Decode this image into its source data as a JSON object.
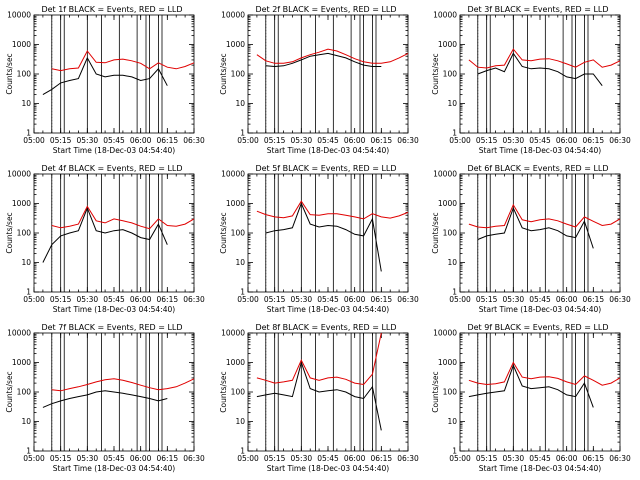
{
  "figure": {
    "xlabel": "Start Time (18-Dec-03 04:54:40)",
    "ylabel": "Counts/sec",
    "x_tick_labels": [
      "05:00",
      "05:15",
      "05:30",
      "05:45",
      "06:00",
      "06:15",
      "06:30"
    ],
    "y_tick_labels": [
      "1",
      "10",
      "100",
      "1000",
      "10000"
    ],
    "colors": {
      "events": "#000000",
      "lld": "#e00000",
      "axes": "#000000",
      "background": "#ffffff"
    }
  },
  "chart_data": [
    {
      "type": "line",
      "title": "Det 1f BLACK = Events, RED = LLD",
      "xlabel": "Start Time (18-Dec-03 04:54:40)",
      "ylabel": "Counts/sec",
      "xlim": [
        "05:00",
        "06:30"
      ],
      "ylim": [
        1,
        10000
      ],
      "yscale": "log",
      "x": [
        "05:05",
        "05:10",
        "05:15",
        "05:20",
        "05:25",
        "05:30",
        "05:35",
        "05:40",
        "05:45",
        "05:50",
        "05:55",
        "06:00",
        "06:05",
        "06:10",
        "06:15",
        "06:20",
        "06:25",
        "06:30"
      ],
      "series": [
        {
          "name": "Events",
          "values": [
            20,
            30,
            50,
            60,
            70,
            350,
            100,
            80,
            90,
            90,
            80,
            60,
            70,
            150,
            40,
            null,
            null,
            null
          ]
        },
        {
          "name": "LLD",
          "values": [
            null,
            150,
            130,
            150,
            160,
            600,
            250,
            240,
            300,
            320,
            280,
            230,
            150,
            240,
            170,
            150,
            180,
            240
          ]
        }
      ],
      "vertical_lines": [
        "05:10",
        "05:15",
        "05:17",
        "05:30",
        "05:38",
        "05:48",
        "05:58",
        "06:03",
        "06:05",
        "06:10",
        "06:12"
      ]
    },
    {
      "type": "line",
      "title": "Det 2f BLACK = Events, RED = LLD",
      "xlabel": "Start Time (18-Dec-03 04:54:40)",
      "ylabel": "Counts/sec",
      "xlim": [
        "05:00",
        "06:30"
      ],
      "ylim": [
        1,
        10000
      ],
      "yscale": "log",
      "x": [
        "05:05",
        "05:10",
        "05:15",
        "05:20",
        "05:25",
        "05:30",
        "05:35",
        "05:40",
        "05:45",
        "05:50",
        "05:55",
        "06:00",
        "06:05",
        "06:10",
        "06:15",
        "06:20",
        "06:25",
        "06:30"
      ],
      "series": [
        {
          "name": "Events",
          "values": [
            null,
            190,
            180,
            190,
            230,
            300,
            400,
            450,
            500,
            420,
            350,
            260,
            200,
            180,
            180,
            null,
            null,
            null
          ]
        },
        {
          "name": "LLD",
          "values": [
            450,
            280,
            230,
            230,
            260,
            350,
            450,
            550,
            700,
            600,
            450,
            330,
            260,
            230,
            230,
            260,
            350,
            500
          ]
        }
      ],
      "vertical_lines": [
        "05:10",
        "05:15",
        "05:17",
        "05:30",
        "05:38",
        "05:48",
        "05:58",
        "06:03",
        "06:05",
        "06:10",
        "06:12"
      ]
    },
    {
      "type": "line",
      "title": "Det 3f BLACK = Events, RED = LLD",
      "xlabel": "Start Time (18-Dec-03 04:54:40)",
      "ylabel": "Counts/sec",
      "xlim": [
        "05:00",
        "06:30"
      ],
      "ylim": [
        1,
        10000
      ],
      "yscale": "log",
      "x": [
        "05:05",
        "05:10",
        "05:15",
        "05:20",
        "05:25",
        "05:30",
        "05:35",
        "05:40",
        "05:45",
        "05:50",
        "05:55",
        "06:00",
        "06:05",
        "06:10",
        "06:15",
        "06:20",
        "06:25",
        "06:30"
      ],
      "series": [
        {
          "name": "Events",
          "values": [
            null,
            100,
            130,
            160,
            120,
            500,
            180,
            150,
            160,
            150,
            120,
            80,
            70,
            100,
            100,
            40,
            null,
            null
          ]
        },
        {
          "name": "LLD",
          "values": [
            300,
            170,
            160,
            190,
            200,
            700,
            300,
            280,
            320,
            330,
            280,
            220,
            170,
            250,
            300,
            170,
            200,
            280
          ]
        }
      ],
      "vertical_lines": [
        "05:10",
        "05:15",
        "05:17",
        "05:30",
        "05:38",
        "05:48",
        "05:58",
        "06:03",
        "06:05",
        "06:10",
        "06:12"
      ]
    },
    {
      "type": "line",
      "title": "Det 4f BLACK = Events, RED = LLD",
      "xlabel": "Start Time (18-Dec-03 04:54:40)",
      "ylabel": "Counts/sec",
      "xlim": [
        "05:00",
        "06:30"
      ],
      "ylim": [
        1,
        10000
      ],
      "yscale": "log",
      "x": [
        "05:05",
        "05:10",
        "05:15",
        "05:20",
        "05:25",
        "05:30",
        "05:35",
        "05:40",
        "05:45",
        "05:50",
        "05:55",
        "06:00",
        "06:05",
        "06:10",
        "06:15",
        "06:20",
        "06:25",
        "06:30"
      ],
      "series": [
        {
          "name": "Events",
          "values": [
            10,
            40,
            80,
            100,
            120,
            700,
            120,
            100,
            120,
            130,
            100,
            70,
            60,
            200,
            40,
            null,
            null,
            null
          ]
        },
        {
          "name": "LLD",
          "values": [
            null,
            180,
            150,
            170,
            200,
            800,
            260,
            220,
            300,
            260,
            220,
            170,
            140,
            300,
            180,
            170,
            200,
            300
          ]
        }
      ],
      "vertical_lines": [
        "05:10",
        "05:15",
        "05:17",
        "05:30",
        "05:38",
        "05:48",
        "05:58",
        "06:03",
        "06:05",
        "06:10",
        "06:12"
      ]
    },
    {
      "type": "line",
      "title": "Det 5f BLACK = Events, RED = LLD",
      "xlabel": "Start Time (18-Dec-03 04:54:40)",
      "ylabel": "Counts/sec",
      "xlim": [
        "05:00",
        "06:30"
      ],
      "ylim": [
        1,
        10000
      ],
      "yscale": "log",
      "x": [
        "05:05",
        "05:10",
        "05:15",
        "05:20",
        "05:25",
        "05:30",
        "05:35",
        "05:40",
        "05:45",
        "05:50",
        "05:55",
        "06:00",
        "06:05",
        "06:10",
        "06:15",
        "06:20",
        "06:25",
        "06:30"
      ],
      "series": [
        {
          "name": "Events",
          "values": [
            null,
            100,
            120,
            130,
            150,
            1000,
            200,
            160,
            180,
            170,
            130,
            90,
            80,
            300,
            5,
            null,
            null,
            null
          ]
        },
        {
          "name": "LLD",
          "values": [
            550,
            420,
            350,
            330,
            380,
            1200,
            420,
            400,
            450,
            450,
            400,
            350,
            300,
            450,
            350,
            320,
            380,
            500
          ]
        }
      ],
      "vertical_lines": [
        "05:10",
        "05:15",
        "05:17",
        "05:30",
        "05:38",
        "05:48",
        "05:58",
        "06:03",
        "06:05",
        "06:10",
        "06:12"
      ]
    },
    {
      "type": "line",
      "title": "Det 6f BLACK = Events, RED = LLD",
      "xlabel": "Start Time (18-Dec-03 04:54:40)",
      "ylabel": "Counts/sec",
      "xlim": [
        "05:00",
        "06:30"
      ],
      "ylim": [
        1,
        10000
      ],
      "yscale": "log",
      "x": [
        "05:05",
        "05:10",
        "05:15",
        "05:20",
        "05:25",
        "05:30",
        "05:35",
        "05:40",
        "05:45",
        "05:50",
        "05:55",
        "06:00",
        "06:05",
        "06:10",
        "06:15",
        "06:20",
        "06:25",
        "06:30"
      ],
      "series": [
        {
          "name": "Events",
          "values": [
            null,
            60,
            80,
            90,
            100,
            700,
            150,
            120,
            130,
            150,
            120,
            80,
            70,
            250,
            30,
            null,
            null,
            null
          ]
        },
        {
          "name": "LLD",
          "values": [
            200,
            160,
            150,
            170,
            180,
            900,
            280,
            240,
            280,
            300,
            260,
            200,
            160,
            350,
            250,
            180,
            200,
            300
          ]
        }
      ],
      "vertical_lines": [
        "05:10",
        "05:15",
        "05:17",
        "05:30",
        "05:38",
        "05:48",
        "05:58",
        "06:03",
        "06:05",
        "06:10",
        "06:12"
      ]
    },
    {
      "type": "line",
      "title": "Det 7f BLACK = Events, RED = LLD",
      "xlabel": "Start Time (18-Dec-03 04:54:40)",
      "ylabel": "Counts/sec",
      "xlim": [
        "05:00",
        "06:30"
      ],
      "ylim": [
        1,
        10000
      ],
      "yscale": "log",
      "x": [
        "05:05",
        "05:10",
        "05:15",
        "05:20",
        "05:25",
        "05:30",
        "05:35",
        "05:40",
        "05:45",
        "05:50",
        "05:55",
        "06:00",
        "06:05",
        "06:10",
        "06:15",
        "06:20",
        "06:25",
        "06:30"
      ],
      "series": [
        {
          "name": "Events",
          "values": [
            30,
            40,
            50,
            60,
            70,
            80,
            100,
            110,
            100,
            90,
            80,
            70,
            60,
            50,
            60,
            null,
            null,
            null
          ]
        },
        {
          "name": "LLD",
          "values": [
            null,
            120,
            110,
            130,
            150,
            180,
            220,
            260,
            280,
            250,
            210,
            170,
            140,
            120,
            130,
            150,
            200,
            280
          ]
        }
      ],
      "vertical_lines": [
        "05:10",
        "05:15",
        "05:17",
        "05:30",
        "05:38",
        "05:48",
        "05:58",
        "06:03",
        "06:05",
        "06:10",
        "06:12"
      ]
    },
    {
      "type": "line",
      "title": "Det 8f BLACK = Events, RED = LLD",
      "xlabel": "Start Time (18-Dec-03 04:54:40)",
      "ylabel": "Counts/sec",
      "xlim": [
        "05:00",
        "06:30"
      ],
      "ylim": [
        1,
        10000
      ],
      "yscale": "log",
      "x": [
        "05:05",
        "05:10",
        "05:15",
        "05:20",
        "05:25",
        "05:30",
        "05:35",
        "05:40",
        "05:45",
        "05:50",
        "05:55",
        "06:00",
        "06:05",
        "06:10",
        "06:15",
        "06:20",
        "06:25",
        "06:30"
      ],
      "series": [
        {
          "name": "Events",
          "values": [
            70,
            80,
            90,
            80,
            70,
            1000,
            130,
            100,
            110,
            120,
            100,
            70,
            60,
            150,
            5,
            null,
            null,
            null
          ]
        },
        {
          "name": "LLD",
          "values": [
            300,
            250,
            200,
            220,
            250,
            1200,
            300,
            250,
            300,
            320,
            270,
            200,
            180,
            400,
            10000,
            null,
            null,
            null
          ]
        }
      ],
      "vertical_lines": [
        "05:10",
        "05:15",
        "05:17",
        "05:30",
        "05:38",
        "05:48",
        "05:58",
        "06:03",
        "06:05",
        "06:10",
        "06:12"
      ]
    },
    {
      "type": "line",
      "title": "Det 9f BLACK = Events, RED = LLD",
      "xlabel": "Start Time (18-Dec-03 04:54:40)",
      "ylabel": "Counts/sec",
      "xlim": [
        "05:00",
        "06:30"
      ],
      "ylim": [
        1,
        10000
      ],
      "yscale": "log",
      "x": [
        "05:05",
        "05:10",
        "05:15",
        "05:20",
        "05:25",
        "05:30",
        "05:35",
        "05:40",
        "05:45",
        "05:50",
        "05:55",
        "06:00",
        "06:05",
        "06:10",
        "06:15",
        "06:20",
        "06:25",
        "06:30"
      ],
      "series": [
        {
          "name": "Events",
          "values": [
            70,
            80,
            90,
            100,
            110,
            800,
            160,
            130,
            140,
            150,
            120,
            80,
            70,
            200,
            30,
            null,
            null,
            null
          ]
        },
        {
          "name": "LLD",
          "values": [
            250,
            200,
            180,
            190,
            220,
            1000,
            320,
            280,
            320,
            330,
            290,
            220,
            180,
            350,
            250,
            170,
            200,
            300
          ]
        }
      ],
      "vertical_lines": [
        "05:10",
        "05:15",
        "05:17",
        "05:30",
        "05:38",
        "05:48",
        "05:58",
        "06:03",
        "06:05",
        "06:10",
        "06:12"
      ]
    }
  ]
}
